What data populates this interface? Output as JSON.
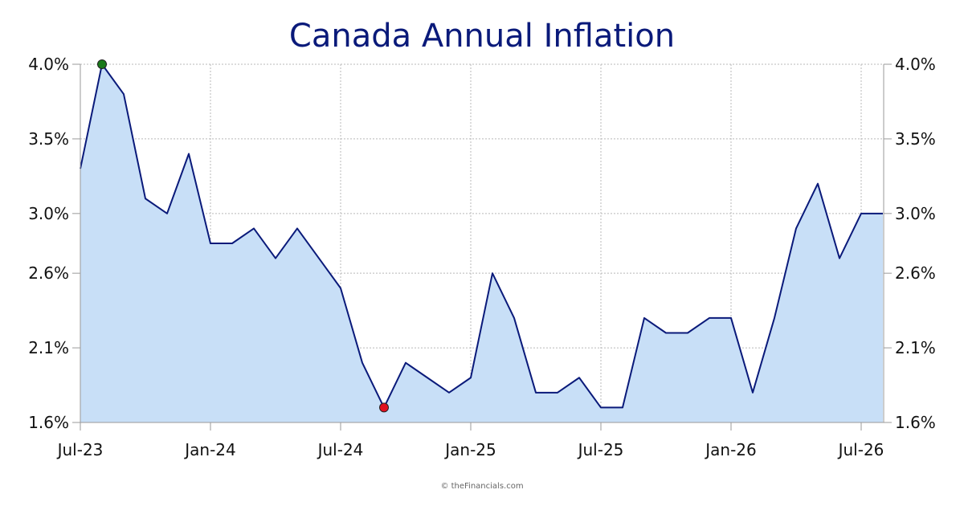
{
  "chart_data": {
    "type": "area",
    "title": "Canada Annual Inflation",
    "xlabel": "",
    "ylabel": "",
    "x_ticks": [
      "Jul-23",
      "Jan-24",
      "Jul-24",
      "Jan-25",
      "Jul-25",
      "Jan-26",
      "Jul-26"
    ],
    "y_ticks": [
      "1.6%",
      "2.1%",
      "2.6%",
      "3.0%",
      "3.5%",
      "4.0%"
    ],
    "y_tick_values": [
      1.6,
      2.1,
      2.6,
      3.0,
      3.5,
      4.0
    ],
    "ylim": [
      1.6,
      4.0
    ],
    "grid": true,
    "x": [
      "Jul-23",
      "Aug-23",
      "Sep-23",
      "Oct-23",
      "Nov-23",
      "Dec-23",
      "Jan-24",
      "Feb-24",
      "Mar-24",
      "Apr-24",
      "May-24",
      "Jun-24",
      "Jul-24",
      "Aug-24",
      "Sep-24",
      "Oct-24",
      "Nov-24",
      "Dec-24",
      "Jan-25",
      "Feb-25",
      "Mar-25",
      "Apr-25",
      "May-25",
      "Jun-25",
      "Jul-25",
      "Aug-25",
      "Sep-25",
      "Oct-25",
      "Nov-25",
      "Dec-25",
      "Jan-26",
      "Feb-26",
      "Mar-26",
      "Apr-26",
      "May-26",
      "Jun-26",
      "Jul-26",
      "Aug-26"
    ],
    "series": [
      {
        "values": [
          3.3,
          4.0,
          3.8,
          3.1,
          3.0,
          3.4,
          2.8,
          2.8,
          2.9,
          2.7,
          2.9,
          2.7,
          2.5,
          2.0,
          1.7,
          2.0,
          1.9,
          1.8,
          1.9,
          2.6,
          2.3,
          1.8,
          1.8,
          1.9,
          1.7,
          1.7,
          2.3,
          2.2,
          2.2,
          2.3,
          2.3,
          1.8,
          2.3,
          2.9,
          3.2,
          2.7,
          3.0,
          3.0
        ],
        "color": "#0a1a7a",
        "fill": "#c8dff7"
      }
    ],
    "highlights": {
      "max": {
        "x": "Aug-23",
        "value": 4.0,
        "color": "#1a7a1a"
      },
      "min": {
        "x": "Sep-24",
        "value": 1.7,
        "color": "#e01020"
      }
    }
  },
  "credit": "© theFinancials.com"
}
